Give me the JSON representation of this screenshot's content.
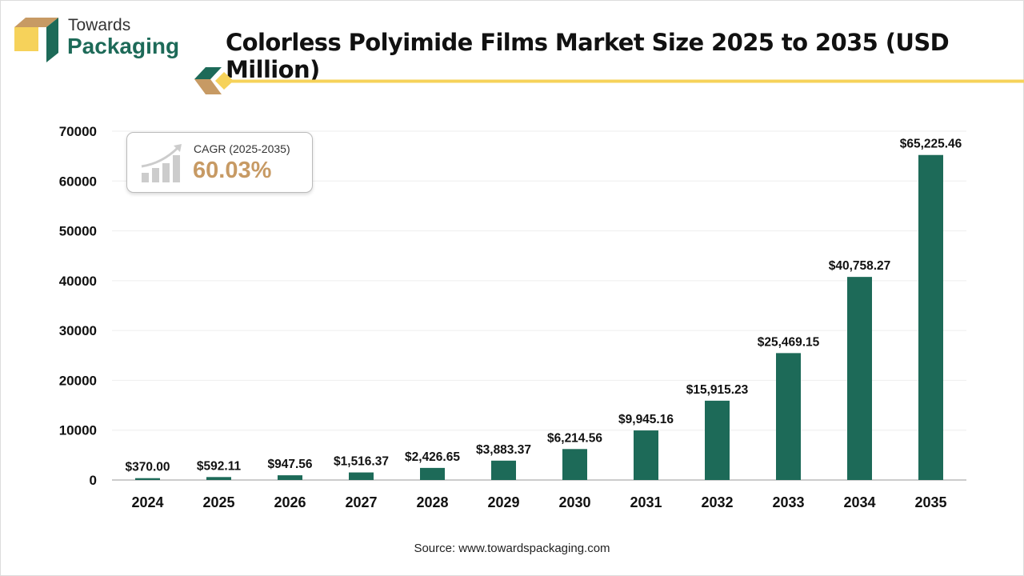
{
  "brand": {
    "line1": "Towards",
    "line2": "Packaging"
  },
  "colors": {
    "bar": "#1d6a58",
    "accent_yellow": "#f6d25a",
    "accent_tan": "#c79a64"
  },
  "cagr": {
    "label": "CAGR (2025-2035)",
    "value": "60.03%",
    "icon": "growth-chart-icon"
  },
  "source": "Source: www.towardspackaging.com",
  "chart_data": {
    "type": "bar",
    "title": "Colorless Polyimide Films Market Size 2025 to 2035 (USD Million)",
    "categories": [
      "2024",
      "2025",
      "2026",
      "2027",
      "2028",
      "2029",
      "2030",
      "2031",
      "2032",
      "2033",
      "2034",
      "2035"
    ],
    "values": [
      370.0,
      592.11,
      947.56,
      1516.37,
      2426.65,
      3883.37,
      6214.56,
      9945.16,
      15915.23,
      25469.15,
      40758.27,
      65225.46
    ],
    "data_labels": [
      "$370.00",
      "$592.11",
      "$947.56",
      "$1,516.37",
      "$2,426.65",
      "$3,883.37",
      "$6,214.56",
      "$9,945.16",
      "$15,915.23",
      "$25,469.15",
      "$40,758.27",
      "$65,225.46"
    ],
    "ylim": [
      0,
      70000
    ],
    "yticks": [
      "0",
      "10000",
      "20000",
      "30000",
      "40000",
      "50000",
      "60000",
      "70000"
    ],
    "grid": true,
    "xlabel": "",
    "ylabel": ""
  }
}
